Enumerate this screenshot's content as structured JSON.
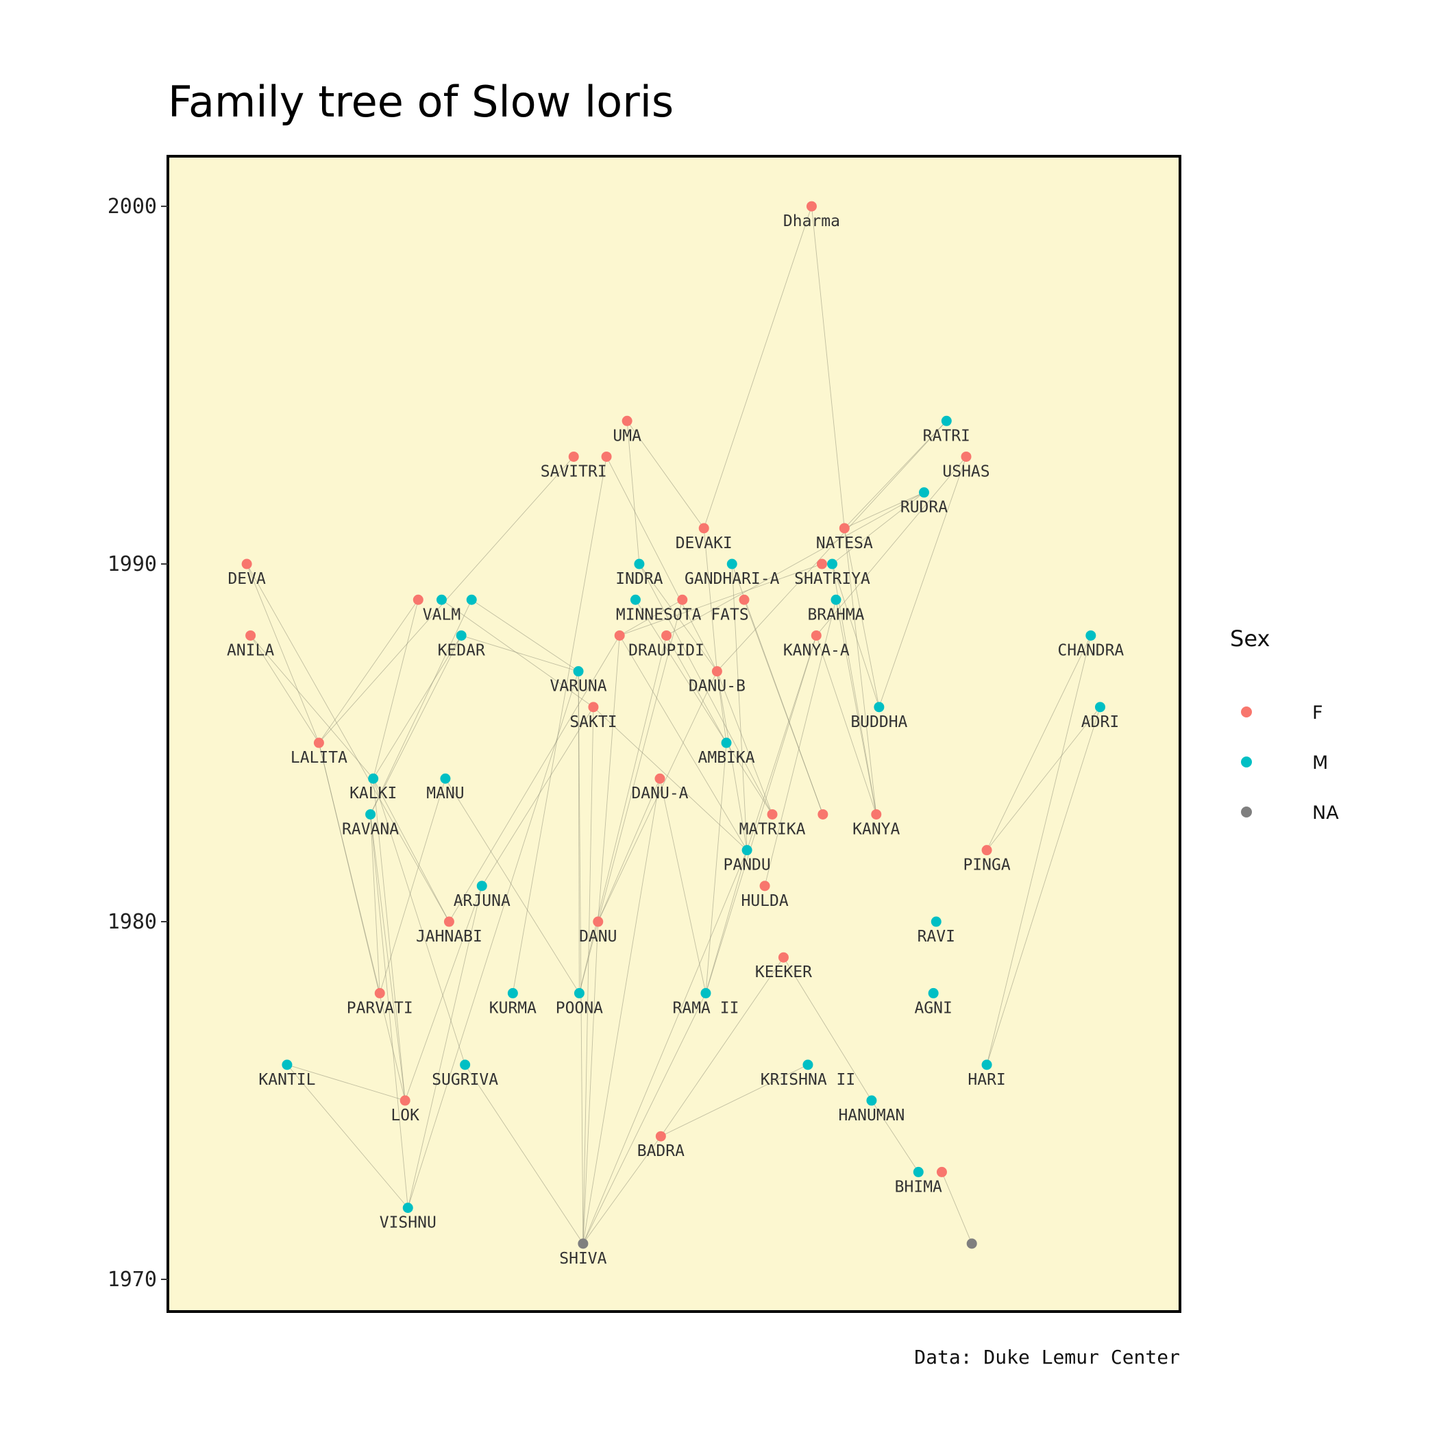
{
  "chart_data": {
    "type": "scatter",
    "title": "Family tree of Slow loris",
    "caption": "Data: Duke Lemur Center",
    "ylim": [
      1969.1,
      2001.4
    ],
    "xlim": [
      0,
      1
    ],
    "y_ticks": [
      1970,
      1980,
      1990,
      2000
    ],
    "x_axis": "none",
    "panel_background": "#fcf7d0",
    "panel_border": "#000000",
    "grid": false,
    "legend": {
      "title": "Sex",
      "placement": "right",
      "entries": [
        {
          "label": "F",
          "color": "#f8766d"
        },
        {
          "label": "M",
          "color": "#00bfc4"
        },
        {
          "label": "NA",
          "color": "#7f7f7f"
        }
      ]
    },
    "nodes": [
      {
        "id": "Dharma",
        "label": "Dharma",
        "x": 0.647,
        "y": 2000,
        "sex": "F"
      },
      {
        "id": "UMA",
        "label": "UMA",
        "x": 0.45,
        "y": 1994,
        "sex": "F"
      },
      {
        "id": "SAVITRI",
        "label": "SAVITRI",
        "x": 0.393,
        "y": 1993,
        "sex": "F"
      },
      {
        "id": "SAVITRI2",
        "label": "",
        "x": 0.428,
        "y": 1993,
        "sex": "F"
      },
      {
        "id": "RATRI",
        "label": "RATRI",
        "x": 0.791,
        "y": 1994,
        "sex": "M"
      },
      {
        "id": "USHAS",
        "label": "USHAS",
        "x": 0.812,
        "y": 1993,
        "sex": "F"
      },
      {
        "id": "RUDRA",
        "label": "RUDRA",
        "x": 0.767,
        "y": 1992,
        "sex": "M"
      },
      {
        "id": "DEVAKI",
        "label": "DEVAKI",
        "x": 0.532,
        "y": 1991,
        "sex": "F"
      },
      {
        "id": "NATESA",
        "label": "NATESA",
        "x": 0.682,
        "y": 1991,
        "sex": "F"
      },
      {
        "id": "DEVA",
        "label": "DEVA",
        "x": 0.044,
        "y": 1990,
        "sex": "F"
      },
      {
        "id": "INDRA",
        "label": "INDRA",
        "x": 0.463,
        "y": 1990,
        "sex": "M"
      },
      {
        "id": "GANDHARI-A",
        "label": "GANDHARI-A",
        "x": 0.562,
        "y": 1990,
        "sex": "M"
      },
      {
        "id": "SHATRIYA-F",
        "label": "",
        "x": 0.658,
        "y": 1990,
        "sex": "F"
      },
      {
        "id": "SHATRIYA",
        "label": "SHATRIYA",
        "x": 0.669,
        "y": 1990,
        "sex": "M"
      },
      {
        "id": "VALM-F",
        "label": "",
        "x": 0.227,
        "y": 1989,
        "sex": "F"
      },
      {
        "id": "VALM",
        "label": "VALM",
        "x": 0.252,
        "y": 1989,
        "sex": "M"
      },
      {
        "id": "VALM2",
        "label": "",
        "x": 0.284,
        "y": 1989,
        "sex": "M"
      },
      {
        "id": "MINNESOTA-M",
        "label": "",
        "x": 0.459,
        "y": 1989,
        "sex": "M"
      },
      {
        "id": "MINNESOTA FATS",
        "label": "MINNESOTA FATS",
        "x": 0.509,
        "y": 1989,
        "sex": "F"
      },
      {
        "id": "MINNESOTA-F2",
        "label": "",
        "x": 0.575,
        "y": 1989,
        "sex": "F"
      },
      {
        "id": "BRAHMA",
        "label": "BRAHMA",
        "x": 0.673,
        "y": 1989,
        "sex": "M"
      },
      {
        "id": "ANILA",
        "label": "ANILA",
        "x": 0.048,
        "y": 1988,
        "sex": "F"
      },
      {
        "id": "KEDAR",
        "label": "KEDAR",
        "x": 0.273,
        "y": 1988,
        "sex": "M"
      },
      {
        "id": "DRAUPIDI-F",
        "label": "",
        "x": 0.442,
        "y": 1988,
        "sex": "F"
      },
      {
        "id": "DRAUPIDI",
        "label": "DRAUPIDI",
        "x": 0.492,
        "y": 1988,
        "sex": "F"
      },
      {
        "id": "KANYA-A",
        "label": "KANYA-A",
        "x": 0.652,
        "y": 1988,
        "sex": "F"
      },
      {
        "id": "CHANDRA",
        "label": "CHANDRA",
        "x": 0.945,
        "y": 1988,
        "sex": "M"
      },
      {
        "id": "VARUNA",
        "label": "VARUNA",
        "x": 0.398,
        "y": 1987,
        "sex": "M"
      },
      {
        "id": "DANU-B",
        "label": "DANU-B",
        "x": 0.546,
        "y": 1987,
        "sex": "F"
      },
      {
        "id": "SAKTI",
        "label": "SAKTI",
        "x": 0.414,
        "y": 1986,
        "sex": "F"
      },
      {
        "id": "BUDDHA",
        "label": "BUDDHA",
        "x": 0.719,
        "y": 1986,
        "sex": "M"
      },
      {
        "id": "ADRI",
        "label": "ADRI",
        "x": 0.955,
        "y": 1986,
        "sex": "M"
      },
      {
        "id": "LALITA",
        "label": "LALITA",
        "x": 0.121,
        "y": 1985,
        "sex": "F"
      },
      {
        "id": "AMBIKA",
        "label": "AMBIKA",
        "x": 0.556,
        "y": 1985,
        "sex": "M"
      },
      {
        "id": "KALKI",
        "label": "KALKI",
        "x": 0.179,
        "y": 1984,
        "sex": "M"
      },
      {
        "id": "MANU",
        "label": "MANU",
        "x": 0.256,
        "y": 1984,
        "sex": "M"
      },
      {
        "id": "DANU-A",
        "label": "DANU-A",
        "x": 0.485,
        "y": 1984,
        "sex": "F"
      },
      {
        "id": "RAVANA",
        "label": "RAVANA",
        "x": 0.176,
        "y": 1983,
        "sex": "M"
      },
      {
        "id": "MATRIKA",
        "label": "MATRIKA",
        "x": 0.605,
        "y": 1983,
        "sex": "F"
      },
      {
        "id": "MATRIKA2",
        "label": "",
        "x": 0.659,
        "y": 1983,
        "sex": "F"
      },
      {
        "id": "KANYA",
        "label": "KANYA",
        "x": 0.716,
        "y": 1983,
        "sex": "F"
      },
      {
        "id": "PANDU",
        "label": "PANDU",
        "x": 0.578,
        "y": 1982,
        "sex": "M"
      },
      {
        "id": "PINGA",
        "label": "PINGA",
        "x": 0.834,
        "y": 1982,
        "sex": "F"
      },
      {
        "id": "ARJUNA",
        "label": "ARJUNA",
        "x": 0.295,
        "y": 1981,
        "sex": "M"
      },
      {
        "id": "HULDA",
        "label": "HULDA",
        "x": 0.597,
        "y": 1981,
        "sex": "F"
      },
      {
        "id": "JAHNABI",
        "label": "JAHNABI",
        "x": 0.26,
        "y": 1980,
        "sex": "F"
      },
      {
        "id": "DANU",
        "label": "DANU",
        "x": 0.419,
        "y": 1980,
        "sex": "F"
      },
      {
        "id": "RAVI",
        "label": "RAVI",
        "x": 0.78,
        "y": 1980,
        "sex": "M"
      },
      {
        "id": "KEEKER",
        "label": "KEEKER",
        "x": 0.617,
        "y": 1979,
        "sex": "F"
      },
      {
        "id": "PARVATI",
        "label": "PARVATI",
        "x": 0.186,
        "y": 1978,
        "sex": "F"
      },
      {
        "id": "KURMA",
        "label": "KURMA",
        "x": 0.328,
        "y": 1978,
        "sex": "M"
      },
      {
        "id": "POONA",
        "label": "POONA",
        "x": 0.399,
        "y": 1978,
        "sex": "M"
      },
      {
        "id": "RAMA II",
        "label": "RAMA II",
        "x": 0.534,
        "y": 1978,
        "sex": "M"
      },
      {
        "id": "AGNI",
        "label": "AGNI",
        "x": 0.777,
        "y": 1978,
        "sex": "M"
      },
      {
        "id": "KANTIL",
        "label": "KANTIL",
        "x": 0.087,
        "y": 1976,
        "sex": "M"
      },
      {
        "id": "SUGRIVA",
        "label": "SUGRIVA",
        "x": 0.277,
        "y": 1976,
        "sex": "M"
      },
      {
        "id": "KRISHNA II",
        "label": "KRISHNA II",
        "x": 0.643,
        "y": 1976,
        "sex": "M"
      },
      {
        "id": "HARI",
        "label": "HARI",
        "x": 0.834,
        "y": 1976,
        "sex": "M"
      },
      {
        "id": "LOK",
        "label": "LOK",
        "x": 0.213,
        "y": 1975,
        "sex": "F"
      },
      {
        "id": "HANUMAN",
        "label": "HANUMAN",
        "x": 0.711,
        "y": 1975,
        "sex": "M"
      },
      {
        "id": "BADRA",
        "label": "BADRA",
        "x": 0.486,
        "y": 1974,
        "sex": "F"
      },
      {
        "id": "BHIMA",
        "label": "BHIMA",
        "x": 0.761,
        "y": 1973,
        "sex": "M"
      },
      {
        "id": "BHIMA-F",
        "label": "",
        "x": 0.786,
        "y": 1973,
        "sex": "F"
      },
      {
        "id": "VISHNU",
        "label": "VISHNU",
        "x": 0.216,
        "y": 1972,
        "sex": "M"
      },
      {
        "id": "SHIVA",
        "label": "SHIVA",
        "x": 0.403,
        "y": 1971,
        "sex": "NA"
      },
      {
        "id": "NA-RIGHT",
        "label": "",
        "x": 0.818,
        "y": 1971,
        "sex": "NA"
      }
    ],
    "edges": [
      [
        "Dharma",
        "DEVAKI"
      ],
      [
        "Dharma",
        "NATESA"
      ],
      [
        "UMA",
        "DEVAKI"
      ],
      [
        "UMA",
        "INDRA"
      ],
      [
        "SAVITRI2",
        "DANU-B"
      ],
      [
        "SAVITRI2",
        "KURMA"
      ],
      [
        "SAVITRI",
        "LALITA"
      ],
      [
        "RATRI",
        "NATESA"
      ],
      [
        "RATRI",
        "DANU-B"
      ],
      [
        "USHAS",
        "BUDDHA"
      ],
      [
        "USHAS",
        "KANYA-A"
      ],
      [
        "RUDRA",
        "SHATRIYA"
      ],
      [
        "RUDRA",
        "DRAUPIDI"
      ],
      [
        "RUDRA",
        "NATESA"
      ],
      [
        "DEVAKI",
        "DANU-B"
      ],
      [
        "NATESA",
        "KANYA"
      ],
      [
        "NATESA",
        "BUDDHA"
      ],
      [
        "DEVA",
        "LALITA"
      ],
      [
        "DEVA",
        "JAHNABI"
      ],
      [
        "INDRA",
        "DANU-B"
      ],
      [
        "INDRA",
        "MATRIKA"
      ],
      [
        "GANDHARI-A",
        "MATRIKA2"
      ],
      [
        "GANDHARI-A",
        "PANDU"
      ],
      [
        "SHATRIYA",
        "BUDDHA"
      ],
      [
        "SHATRIYA-F",
        "DRAUPIDI-F"
      ],
      [
        "SHATRIYA",
        "KANYA"
      ],
      [
        "VALM-F",
        "KALKI"
      ],
      [
        "VALM-F",
        "LALITA"
      ],
      [
        "VALM",
        "SAKTI"
      ],
      [
        "VALM2",
        "VARUNA"
      ],
      [
        "VALM2",
        "RAVANA"
      ],
      [
        "MINNESOTA-M",
        "AMBIKA"
      ],
      [
        "MINNESOTA FATS",
        "DANU"
      ],
      [
        "MINNESOTA-F2",
        "MATRIKA2"
      ],
      [
        "MINNESOTA FATS",
        "DRAUPIDI-F"
      ],
      [
        "BRAHMA",
        "KANYA"
      ],
      [
        "BRAHMA",
        "HULDA"
      ],
      [
        "ANILA",
        "LALITA"
      ],
      [
        "ANILA",
        "KALKI"
      ],
      [
        "KEDAR",
        "KALKI"
      ],
      [
        "KEDAR",
        "RAVANA"
      ],
      [
        "KEDAR",
        "VARUNA"
      ],
      [
        "DRAUPIDI-F",
        "DANU"
      ],
      [
        "DRAUPIDI-F",
        "JAHNABI"
      ],
      [
        "DRAUPIDI",
        "POONA"
      ],
      [
        "DRAUPIDI",
        "AMBIKA"
      ],
      [
        "DRAUPIDI-F",
        "PANDU"
      ],
      [
        "KANYA-A",
        "RAMA II"
      ],
      [
        "KANYA-A",
        "KANYA"
      ],
      [
        "KANYA-A",
        "PANDU"
      ],
      [
        "CHANDRA",
        "PINGA"
      ],
      [
        "CHANDRA",
        "HARI"
      ],
      [
        "ADRI",
        "PINGA"
      ],
      [
        "ADRI",
        "HARI"
      ],
      [
        "VARUNA",
        "POONA"
      ],
      [
        "VARUNA",
        "VISHNU"
      ],
      [
        "VARUNA",
        "SHIVA"
      ],
      [
        "DANU-B",
        "DANU"
      ],
      [
        "DANU-B",
        "AMBIKA"
      ],
      [
        "DANU-B",
        "PANDU"
      ],
      [
        "DANU-B",
        "MATRIKA"
      ],
      [
        "SAKTI",
        "SHIVA"
      ],
      [
        "SAKTI",
        "PANDU"
      ],
      [
        "SAKTI",
        "ARJUNA"
      ],
      [
        "LALITA",
        "PARVATI"
      ],
      [
        "LALITA",
        "LOK"
      ],
      [
        "AMBIKA",
        "RAMA II"
      ],
      [
        "AMBIKA",
        "MATRIKA"
      ],
      [
        "KALKI",
        "SUGRIVA"
      ],
      [
        "KALKI",
        "LOK"
      ],
      [
        "KALKI",
        "JAHNABI"
      ],
      [
        "MANU",
        "POONA"
      ],
      [
        "MANU",
        "PARVATI"
      ],
      [
        "DANU-A",
        "RAMA II"
      ],
      [
        "DANU-A",
        "DANU"
      ],
      [
        "DANU-A",
        "SHIVA"
      ],
      [
        "RAVANA",
        "VISHNU"
      ],
      [
        "RAVANA",
        "LOK"
      ],
      [
        "RAVANA",
        "PARVATI"
      ],
      [
        "PANDU",
        "SHIVA"
      ],
      [
        "PANDU",
        "RAMA II"
      ],
      [
        "ARJUNA",
        "LOK"
      ],
      [
        "ARJUNA",
        "VISHNU"
      ],
      [
        "DANU",
        "SHIVA"
      ],
      [
        "DANU",
        "POONA"
      ],
      [
        "KEEKER",
        "BADRA"
      ],
      [
        "KEEKER",
        "HANUMAN"
      ],
      [
        "KANTIL",
        "LOK"
      ],
      [
        "KANTIL",
        "VISHNU"
      ],
      [
        "SUGRIVA",
        "SHIVA"
      ],
      [
        "KRISHNA II",
        "BADRA"
      ],
      [
        "BADRA",
        "SHIVA"
      ],
      [
        "HANUMAN",
        "BHIMA"
      ],
      [
        "BHIMA-F",
        "NA-RIGHT"
      ],
      [
        "RAMA II",
        "SHIVA"
      ]
    ]
  }
}
